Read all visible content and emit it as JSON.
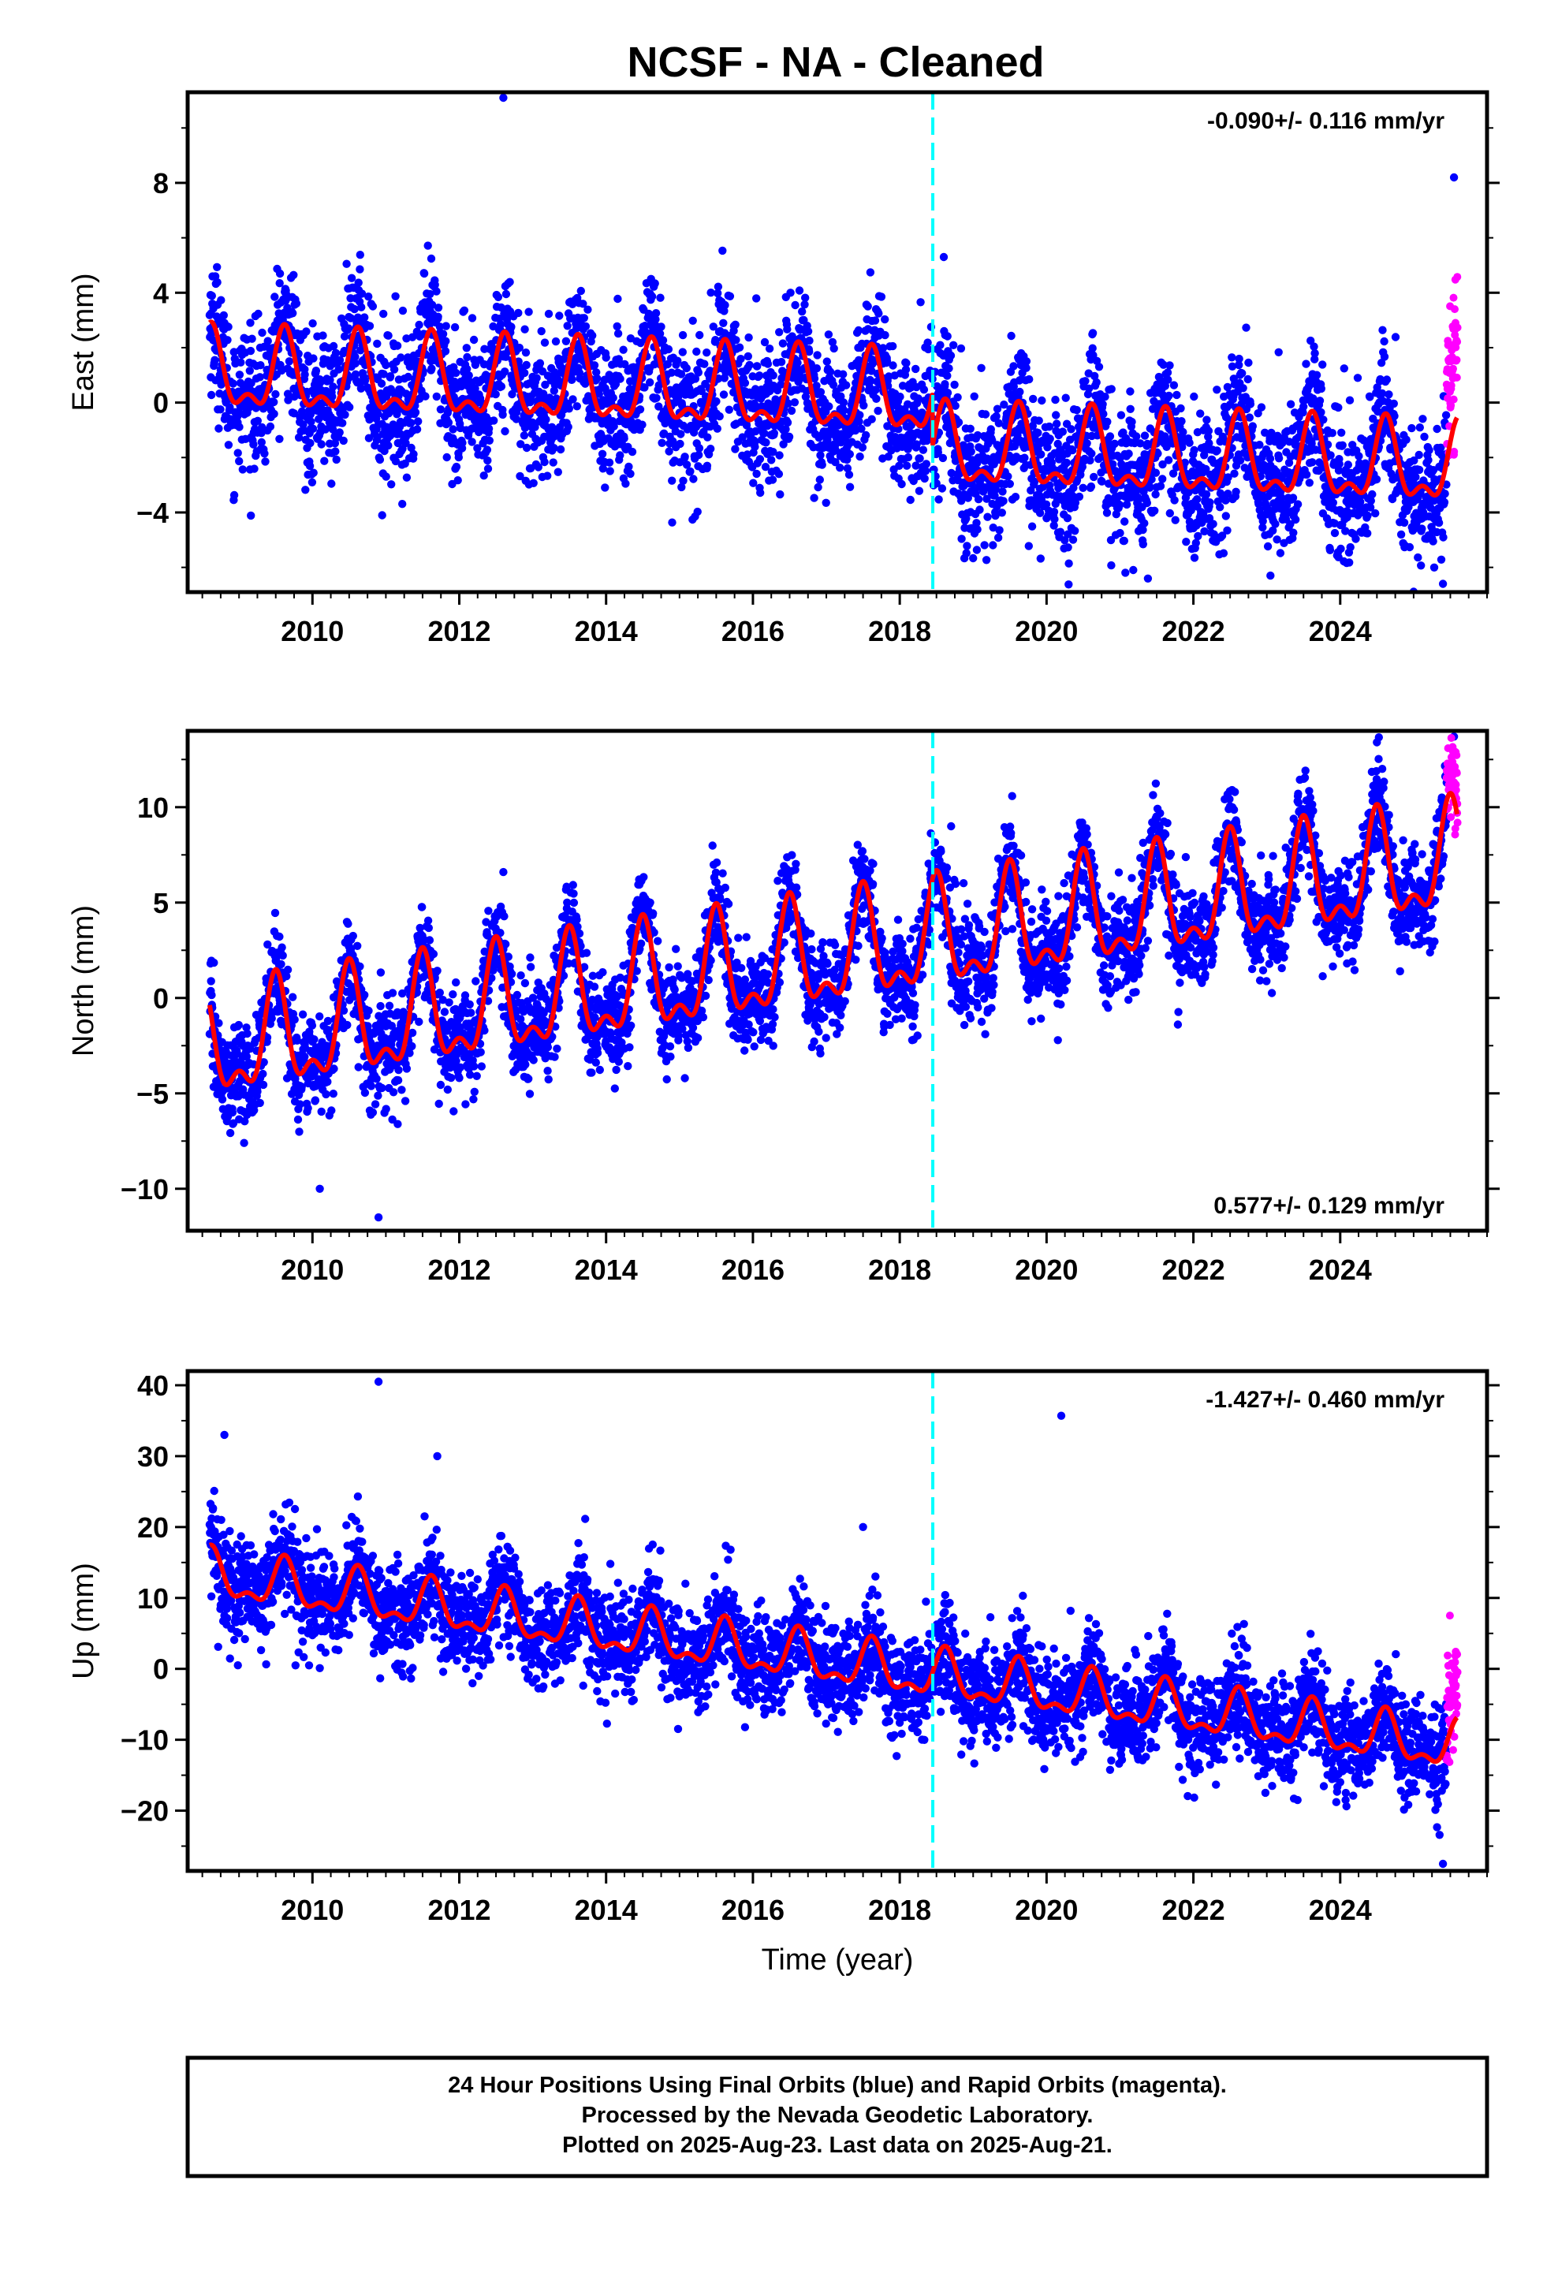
{
  "title": "NCSF  - NA - Cleaned",
  "footer": {
    "line1": "24 Hour Positions Using Final Orbits (blue) and Rapid Orbits (magenta).",
    "line2": "Processed by the Nevada Geodetic Laboratory.",
    "line3": "Plotted on 2025-Aug-23. Last data on 2025-Aug-21."
  },
  "colors": {
    "final_orbits": "#0000ff",
    "rapid_orbits": "#ff00ff",
    "model_fit": "#ff0000",
    "event_line": "#00ffff"
  },
  "chart_data": [
    {
      "type": "scatter",
      "ylabel": "East (mm)",
      "rate_label": "-0.090+/- 0.116 mm/yr",
      "rate_position": "top-right",
      "xlim": [
        2008.3,
        2026.0
      ],
      "ylim": [
        -6.9,
        11.3
      ],
      "yticks": [
        -4,
        0,
        4,
        8
      ],
      "ytick_labels": [
        "−4",
        "0",
        "4",
        "8"
      ],
      "xticks": [
        2010,
        2012,
        2014,
        2016,
        2018,
        2020,
        2022,
        2024
      ],
      "xtick_labels": [
        "2010",
        "2012",
        "2014",
        "2016",
        "2018",
        "2020",
        "2022",
        "2024"
      ],
      "event_line_x": 2018.45,
      "model": {
        "start": 2008.6,
        "end": 2025.6,
        "offset": 1.0,
        "trend": -0.09,
        "annual_amp": 1.85,
        "peak_phase": 0.62,
        "step_at": 2018.45,
        "step": -1.9,
        "scatter_sd": 1.25
      },
      "outliers": [
        {
          "x": 2012.6,
          "y": 11.1
        },
        {
          "x": 2025.55,
          "y": 8.2
        },
        {
          "x": 2010.95,
          "y": -4.1
        },
        {
          "x": 2023.05,
          "y": -6.3
        },
        {
          "x": 2025.4,
          "y": -6.6
        },
        {
          "x": 2018.6,
          "y": 5.3
        }
      ]
    },
    {
      "type": "scatter",
      "ylabel": "North (mm)",
      "rate_label": "0.577+/- 0.129 mm/yr",
      "rate_position": "bottom-right",
      "xlim": [
        2008.3,
        2026.0
      ],
      "ylim": [
        -12.2,
        14.0
      ],
      "yticks": [
        -10,
        -5,
        0,
        5,
        10
      ],
      "ytick_labels": [
        "−10",
        "−5",
        "0",
        "5",
        "10"
      ],
      "xticks": [
        2010,
        2012,
        2014,
        2016,
        2018,
        2020,
        2022,
        2024
      ],
      "xtick_labels": [
        "2010",
        "2012",
        "2014",
        "2016",
        "2018",
        "2020",
        "2022",
        "2024"
      ],
      "event_line_x": 2018.45,
      "model": {
        "start": 2008.6,
        "end": 2025.6,
        "offset": -2.8,
        "trend": 0.577,
        "annual_amp": 3.6,
        "peak_phase": 0.5,
        "step_at": 2018.45,
        "step": 0.0,
        "scatter_sd": 1.3
      },
      "outliers": [
        {
          "x": 2010.9,
          "y": -11.5
        },
        {
          "x": 2012.6,
          "y": 6.6
        },
        {
          "x": 2025.55,
          "y": 13.7
        },
        {
          "x": 2024.5,
          "y": 13.4
        },
        {
          "x": 2018.7,
          "y": 9.0
        },
        {
          "x": 2010.1,
          "y": -10.0
        }
      ]
    },
    {
      "type": "scatter",
      "ylabel": "Up (mm)",
      "rate_label": "-1.427+/- 0.460 mm/yr",
      "rate_position": "top-right",
      "xlabel": "Time (year)",
      "xlim": [
        2008.3,
        2026.0
      ],
      "ylim": [
        -28.5,
        42.0
      ],
      "yticks": [
        -20,
        -10,
        0,
        10,
        20,
        30,
        40
      ],
      "ytick_labels": [
        "−20",
        "−10",
        "0",
        "10",
        "20",
        "30",
        "40"
      ],
      "xticks": [
        2010,
        2012,
        2014,
        2016,
        2018,
        2020,
        2022,
        2024
      ],
      "xtick_labels": [
        "2010",
        "2012",
        "2014",
        "2016",
        "2018",
        "2020",
        "2022",
        "2024"
      ],
      "event_line_x": 2018.45,
      "model": {
        "start": 2008.6,
        "end": 2025.6,
        "offset": 13.0,
        "trend": -1.427,
        "annual_amp": 4.3,
        "peak_phase": 0.62,
        "step_at": 2018.45,
        "step": 0.0,
        "scatter_sd": 3.6
      },
      "outliers": [
        {
          "x": 2010.9,
          "y": 40.5
        },
        {
          "x": 2020.2,
          "y": 35.7
        },
        {
          "x": 2008.8,
          "y": 33.0
        },
        {
          "x": 2025.4,
          "y": -27.5
        },
        {
          "x": 2017.5,
          "y": 20.0
        },
        {
          "x": 2011.7,
          "y": 30.0
        }
      ]
    }
  ]
}
